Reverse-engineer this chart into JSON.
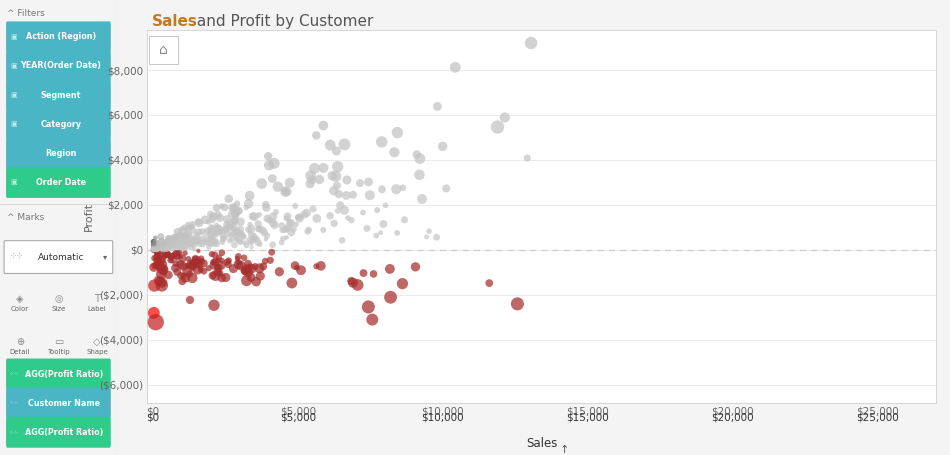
{
  "title_part1": "Sales",
  "title_part2": " and Profit by Customer",
  "xlabel": "Sales",
  "ylabel": "Profit",
  "xlim": [
    -200,
    27000
  ],
  "ylim": [
    -6800,
    9800
  ],
  "yticks": [
    -6000,
    -4000,
    -2000,
    0,
    2000,
    4000,
    6000,
    8000
  ],
  "xticks": [
    0,
    5000,
    10000,
    15000,
    20000,
    25000
  ],
  "xtick_labels": [
    "$0",
    "$5,000",
    "$10,000",
    "$15,000",
    "$20,000",
    "$25,000"
  ],
  "ytick_labels": [
    "($6,000)",
    "($4,000)",
    "($2,000)",
    "$0",
    "$2,000",
    "$4,000",
    "$6,000",
    "$8,000"
  ],
  "bg_color": "#f4f4f4",
  "plot_bg_color": "#ffffff",
  "grid_color": "#ebebeb",
  "zero_line_color": "#cccccc",
  "bottom_bar_color": "#8ecfdc",
  "filter_pill_color": "#4ab5c4",
  "order_date_pill_color": "#2ecb8a",
  "marks_pill_teal": "#4ab5c4",
  "marks_pill_green": "#2ecb8a",
  "sidebar_bg": "#efefef",
  "scatter_alpha": 0.72,
  "seed": 42,
  "n_positive": 420,
  "n_negative": 160
}
